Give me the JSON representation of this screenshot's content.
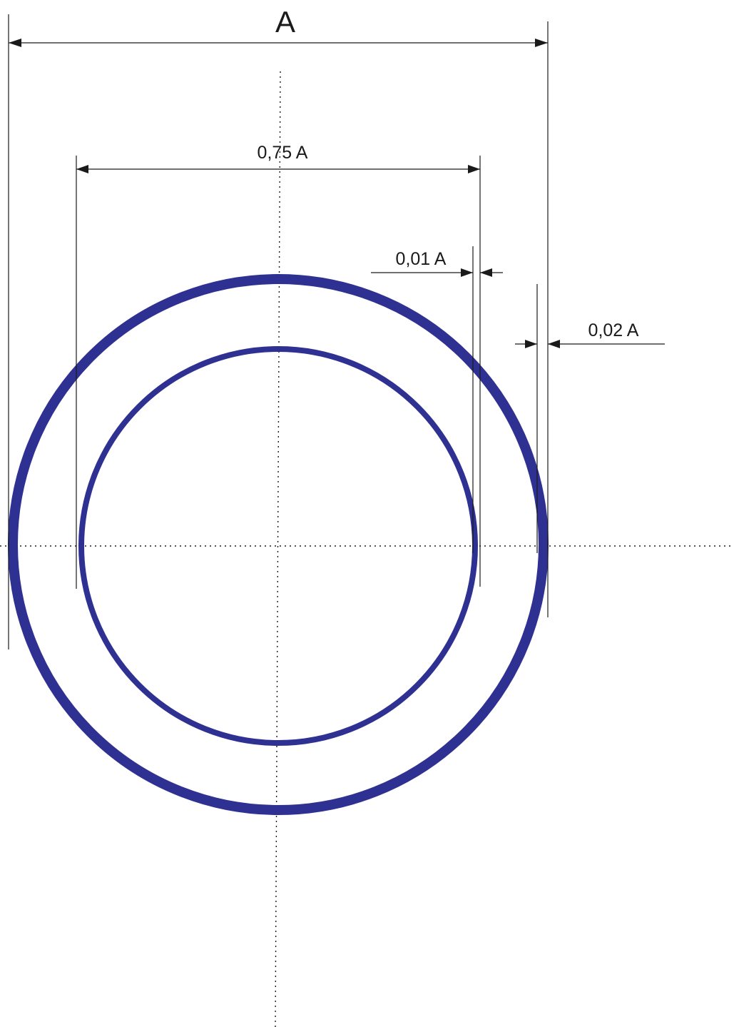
{
  "labels": {
    "overall_width": "A",
    "inner_width": "0,75 A",
    "inner_ring_thickness": "0,01 A",
    "outer_ring_thickness": "0,02 A"
  },
  "colors": {
    "ring": "#2e3192",
    "line": "#1a1a1a",
    "background": "#ffffff"
  },
  "proportions": {
    "outer_diameter": 1.0,
    "inner_diameter": 0.75,
    "inner_ring_thickness": 0.01,
    "outer_ring_thickness": 0.02
  }
}
